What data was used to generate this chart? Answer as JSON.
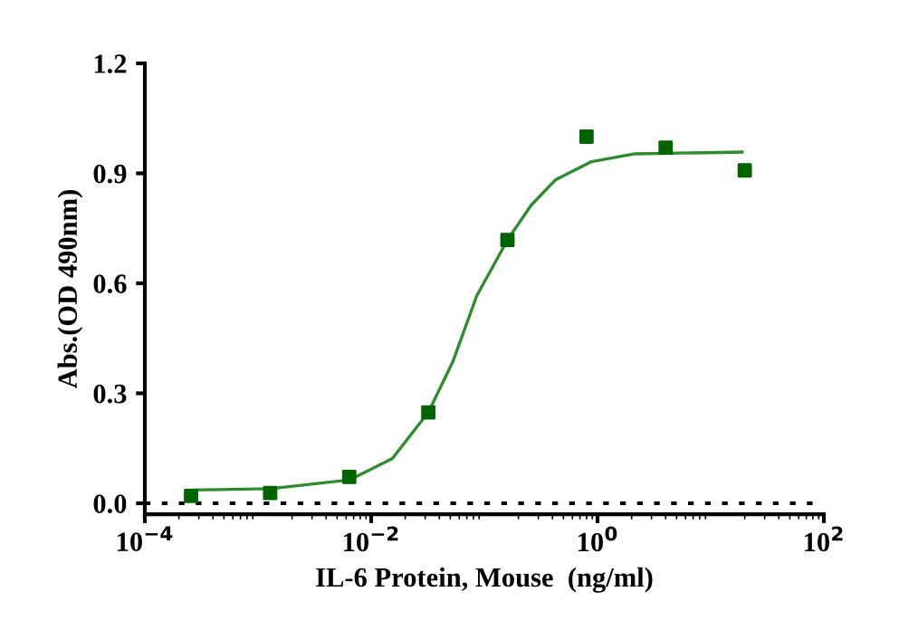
{
  "chart_data": {
    "type": "scatter",
    "xlabel": "IL-6 Protein, Mouse  (ng/ml)",
    "ylabel": "Abs.(OD 490nm)",
    "log": "x",
    "xlim": [
      0.0001,
      100
    ],
    "xticks": [
      {
        "value": 0.0001,
        "label": "10$^{−4}$"
      },
      {
        "value": 0.01,
        "label": "10$^{−2}$"
      },
      {
        "value": 1,
        "label": "10$^{0}$"
      },
      {
        "value": 100,
        "label": "10$^{2}$"
      }
    ],
    "ylim": [
      -0.03,
      1.2
    ],
    "yticks": [
      {
        "value": 0,
        "label": "0.0"
      },
      {
        "value": 0.3,
        "label": "0.3"
      },
      {
        "value": 0.6,
        "label": "0.6"
      },
      {
        "value": 0.9,
        "label": "0.9"
      },
      {
        "value": 1.2,
        "label": "1.2"
      }
    ],
    "grid": false,
    "ref_lines": [
      {
        "axis": "y",
        "value": 0,
        "color": "#000000",
        "line_style": "dotted"
      }
    ],
    "series": [
      {
        "color": "#006400",
        "marker": "square",
        "x": [
          0.000256,
          0.00128,
          0.0064,
          0.032,
          0.16,
          0.8,
          4,
          20
        ],
        "values": [
          0.02,
          0.028,
          0.072,
          0.248,
          0.718,
          1.0,
          0.97,
          0.908
        ]
      },
      {
        "type": "line",
        "color": "#2e8b2e",
        "marker": "none",
        "line_style": "solid",
        "x": [
          0.00026,
          0.00129,
          0.0065,
          0.0154,
          0.032,
          0.0525,
          0.0857,
          0.16,
          0.259,
          0.424,
          0.885,
          2.09,
          19
        ],
        "values": [
          0.036,
          0.04,
          0.064,
          0.122,
          0.248,
          0.385,
          0.566,
          0.718,
          0.813,
          0.882,
          0.932,
          0.953,
          0.958
        ]
      }
    ]
  }
}
